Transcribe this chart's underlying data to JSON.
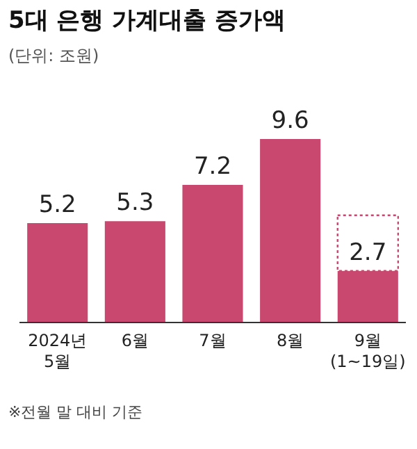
{
  "chart_data": {
    "type": "bar",
    "title": "5대 은행 가계대출 증가액",
    "subtitle": "(단위: 조원)",
    "categories": [
      "2024년\n5월",
      "6월",
      "7월",
      "8월",
      "9월\n(1~19일)"
    ],
    "values": [
      5.2,
      5.3,
      7.2,
      9.6,
      2.7
    ],
    "color": "#c9486f",
    "data_labels": true,
    "annotations": [
      "※전월 말 대비 기준"
    ]
  }
}
